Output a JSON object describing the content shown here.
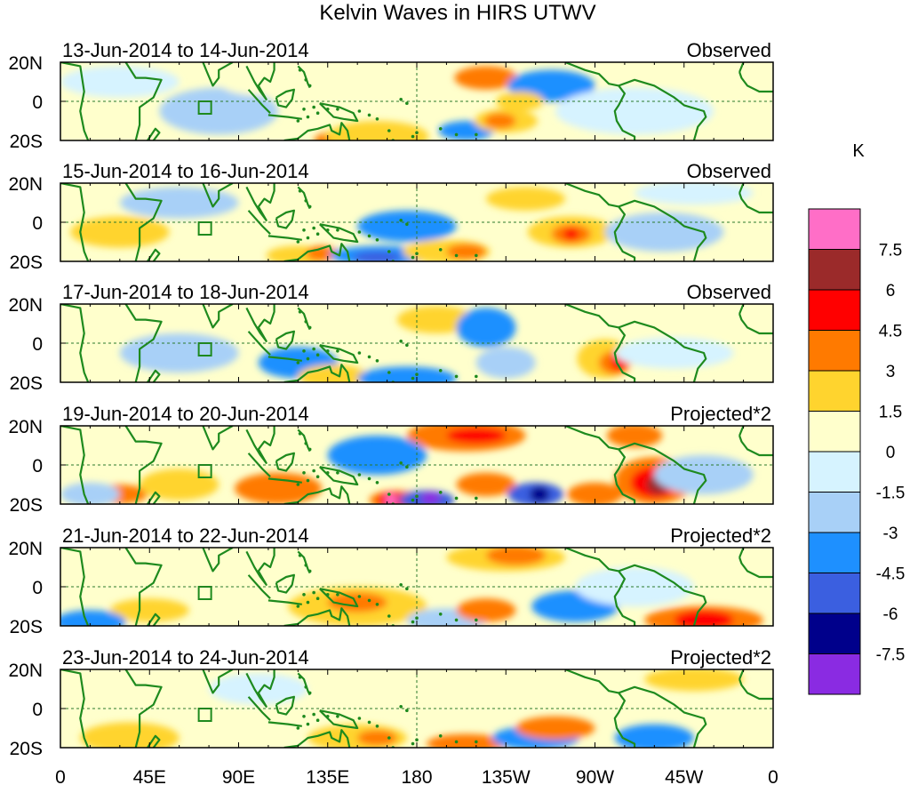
{
  "chart_data": {
    "type": "heatmap",
    "title": "Kelvin Waves in HIRS UTWV",
    "variable": "HIRS UTWV anomaly",
    "units_label": "K",
    "x_tick_labels": [
      "0",
      "45E",
      "90E",
      "135E",
      "180",
      "135W",
      "90W",
      "45W",
      "0"
    ],
    "y_tick_labels": [
      "20N",
      "0",
      "20S"
    ],
    "panels": [
      {
        "date_range": "13-Jun-2014 to 14-Jun-2014",
        "kind": "Observed"
      },
      {
        "date_range": "15-Jun-2014 to 16-Jun-2014",
        "kind": "Observed"
      },
      {
        "date_range": "17-Jun-2014 to 18-Jun-2014",
        "kind": "Observed"
      },
      {
        "date_range": "19-Jun-2014 to 20-Jun-2014",
        "kind": "Projected*2"
      },
      {
        "date_range": "21-Jun-2014 to 22-Jun-2014",
        "kind": "Projected*2"
      },
      {
        "date_range": "23-Jun-2014 to 24-Jun-2014",
        "kind": "Projected*2"
      }
    ],
    "colorbar": {
      "colors": [
        "#ff6ec7",
        "#9b2a2a",
        "#ff0000",
        "#ff7a00",
        "#ffd42e",
        "#ffffcc",
        "#d6f3ff",
        "#a8d0f7",
        "#1e90ff",
        "#3b5fe0",
        "#00008b",
        "#8a2be2"
      ],
      "labels": [
        "7.5",
        "6",
        "4.5",
        "3",
        "1.5",
        "0",
        "-1.5",
        "-3",
        "-4.5",
        "-6",
        "-7.5"
      ]
    }
  }
}
